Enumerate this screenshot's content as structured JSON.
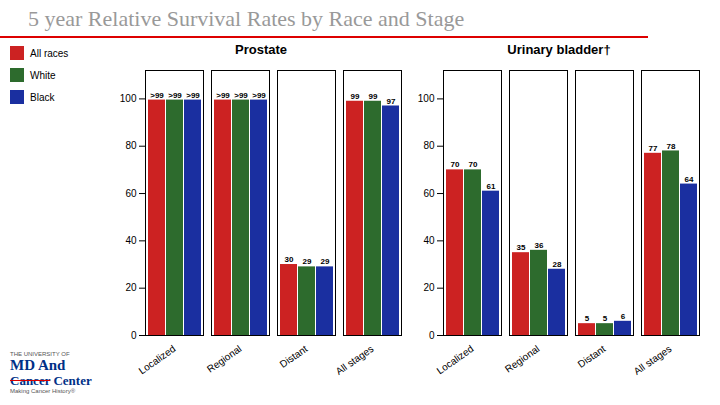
{
  "title": "5 year Relative Survival Rates by Race and Stage",
  "annotations": [
    "THE UNIVERSITY OF",
    "MD",
    "And",
    "Cancer",
    "Center",
    "Making Cancer History®"
  ],
  "chart_data": [
    {
      "type": "bar",
      "title": "Prostate",
      "categories": [
        "Localized",
        "Regional",
        "Distant",
        "All stages"
      ],
      "series": [
        {
          "name": "All races",
          "color": "#cc2222",
          "values": [
            99.5,
            99.5,
            30,
            99
          ],
          "value_labels": [
            ">99",
            ">99",
            "30",
            "99"
          ]
        },
        {
          "name": "White",
          "color": "#2d6b2d",
          "values": [
            99.5,
            99.5,
            29,
            99
          ],
          "value_labels": [
            ">99",
            ">99",
            "29",
            "99"
          ]
        },
        {
          "name": "Black",
          "color": "#1a2fa0",
          "values": [
            99.5,
            99.5,
            29,
            97
          ],
          "value_labels": [
            ">99",
            ">99",
            "29",
            "97"
          ]
        }
      ],
      "ylim": [
        0,
        112
      ],
      "yticks": [
        0,
        20,
        40,
        60,
        80,
        100
      ],
      "data_labels": true,
      "grid": false,
      "legend": "left"
    },
    {
      "type": "bar",
      "title": "Urinary bladder†",
      "categories": [
        "Localized",
        "Regional",
        "Distant",
        "All stages"
      ],
      "series": [
        {
          "name": "All races",
          "color": "#cc2222",
          "values": [
            70,
            35,
            5,
            77
          ]
        },
        {
          "name": "White",
          "color": "#2d6b2d",
          "values": [
            70,
            36,
            5,
            78
          ]
        },
        {
          "name": "Black",
          "color": "#1a2fa0",
          "values": [
            61,
            28,
            6,
            64
          ]
        }
      ],
      "ylim": [
        0,
        112
      ],
      "yticks": [
        0,
        20,
        40,
        60,
        80,
        100
      ],
      "data_labels": true,
      "grid": false,
      "legend": "left"
    }
  ]
}
